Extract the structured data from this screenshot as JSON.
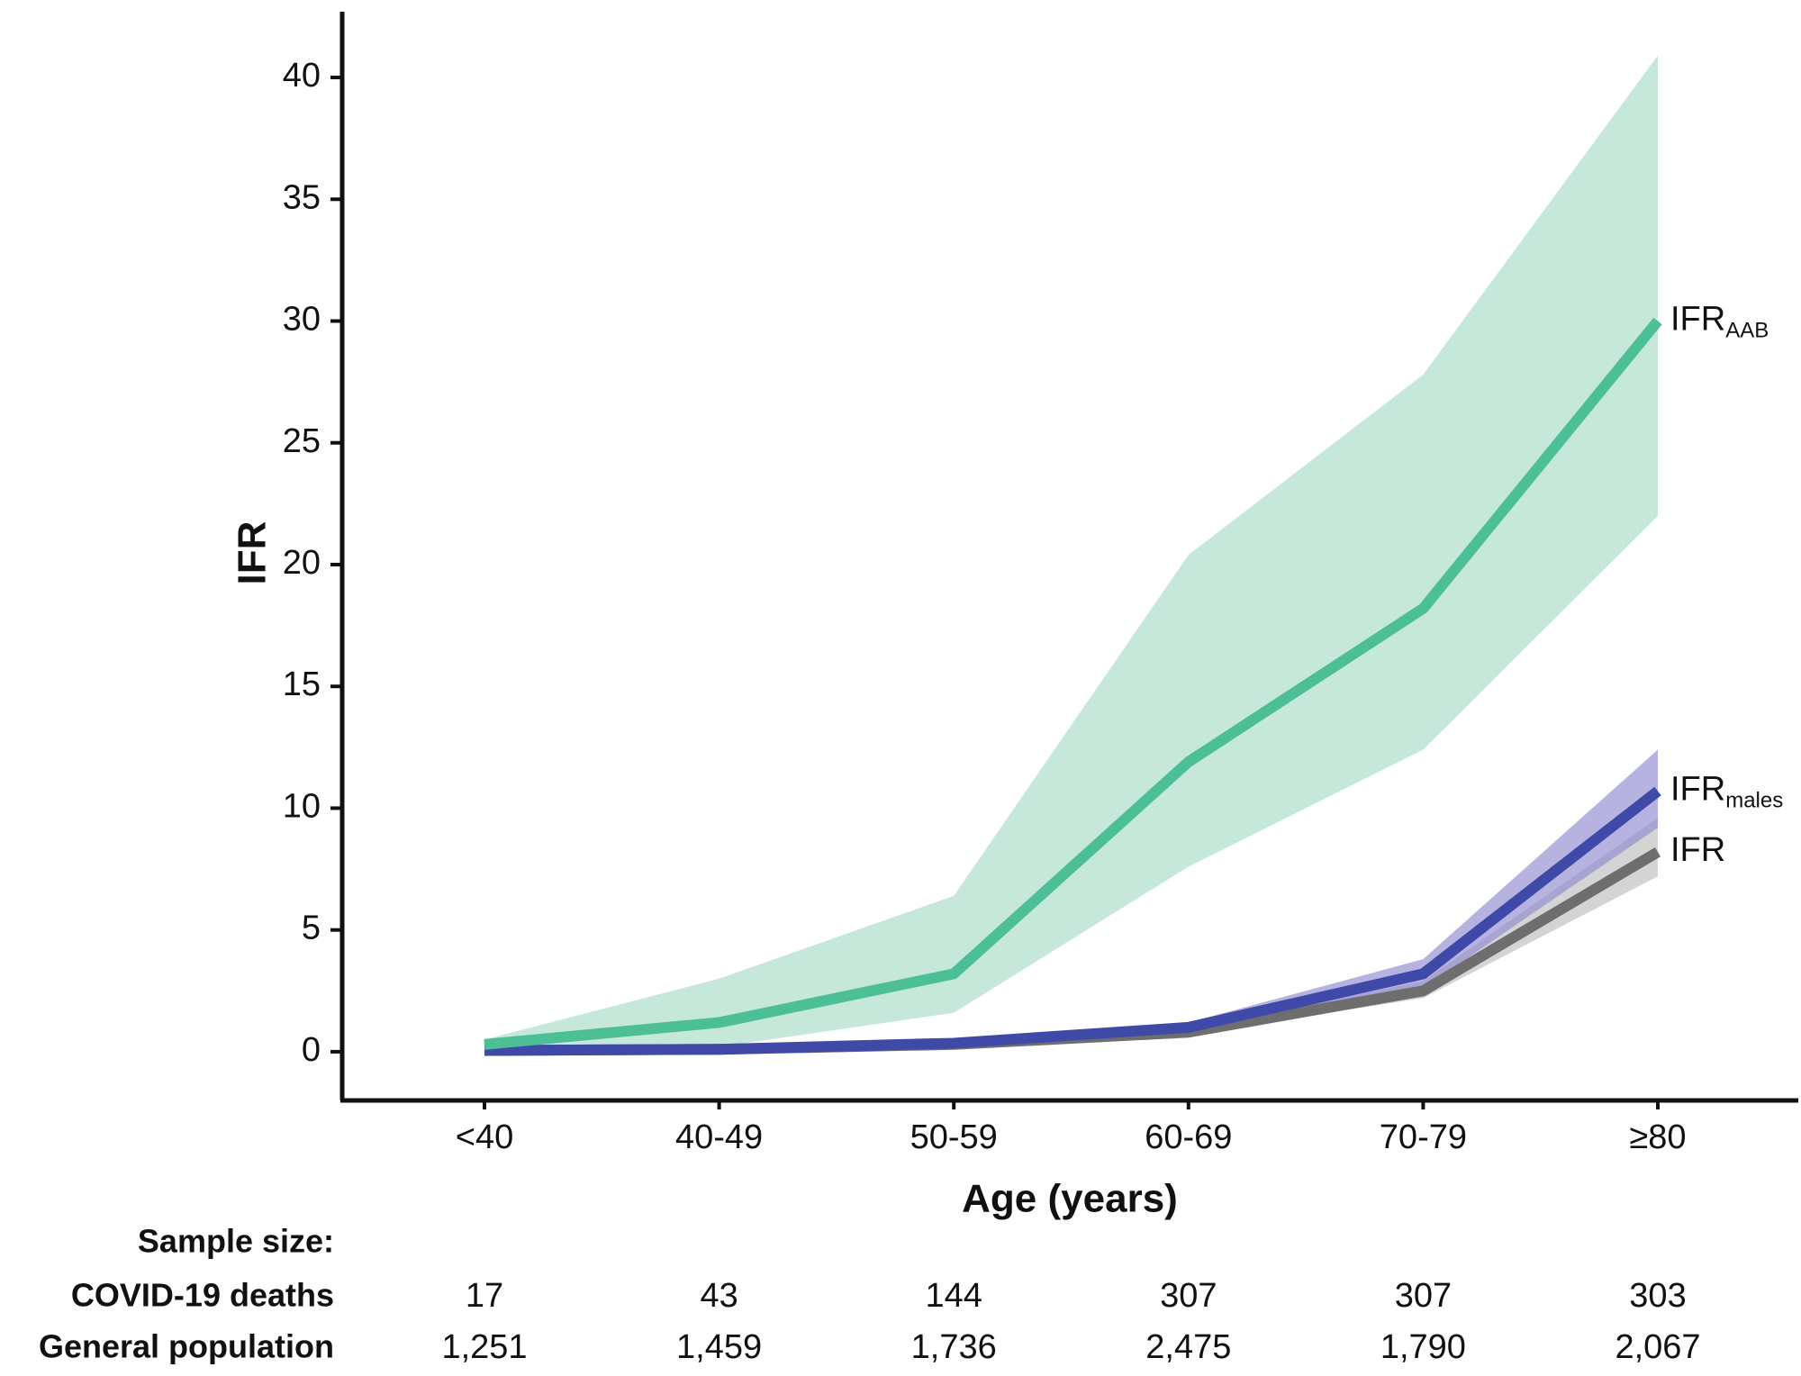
{
  "chart_data": {
    "type": "line",
    "y_label": "IFR",
    "x_label": "Age (years)",
    "categories": [
      "<40",
      "40-49",
      "50-59",
      "60-69",
      "70-79",
      "≥80"
    ],
    "ylim": [
      -2,
      42.7
    ],
    "yticks": [
      0,
      5,
      10,
      15,
      20,
      25,
      30,
      35,
      40
    ],
    "series": [
      {
        "name": "IFR",
        "sub": "",
        "color": "#6e6e6e",
        "band_color": "#bdbdbd",
        "values": [
          0.05,
          0.1,
          0.3,
          0.8,
          2.5,
          8.2
        ],
        "lower": [
          0.04,
          0.08,
          0.25,
          0.7,
          2.2,
          7.2
        ],
        "upper": [
          0.08,
          0.12,
          0.35,
          0.9,
          2.9,
          9.6
        ]
      },
      {
        "name": "IFR",
        "sub": "males",
        "color": "#3f4aa8",
        "band_color": "#8f8ad0",
        "values": [
          0.05,
          0.1,
          0.35,
          1.0,
          3.2,
          10.7
        ],
        "lower": [
          0.05,
          0.1,
          0.3,
          0.9,
          2.6,
          9.2
        ],
        "upper": [
          0.1,
          0.15,
          0.4,
          1.2,
          3.8,
          12.4
        ]
      },
      {
        "name": "IFR",
        "sub": "AAB",
        "color": "#4dbf97",
        "band_color": "#a6dbc6",
        "values": [
          0.3,
          1.2,
          3.2,
          11.9,
          18.2,
          30
        ],
        "lower": [
          0.1,
          0.2,
          1.6,
          7.6,
          12.4,
          22.0
        ],
        "upper": [
          0.5,
          3.0,
          6.4,
          20.4,
          27.8,
          40.9
        ]
      }
    ],
    "table": {
      "title": "Sample size:",
      "rows": [
        {
          "label": "COVID-19 deaths",
          "values": [
            17,
            43,
            144,
            307,
            307,
            303
          ]
        },
        {
          "label": "General population",
          "values": [
            1251,
            1459,
            1736,
            2475,
            1790,
            2067
          ],
          "value_labels": [
            "1,251",
            "1,459",
            "1,736",
            "2,475",
            "1,790",
            "2,067"
          ]
        }
      ]
    }
  }
}
